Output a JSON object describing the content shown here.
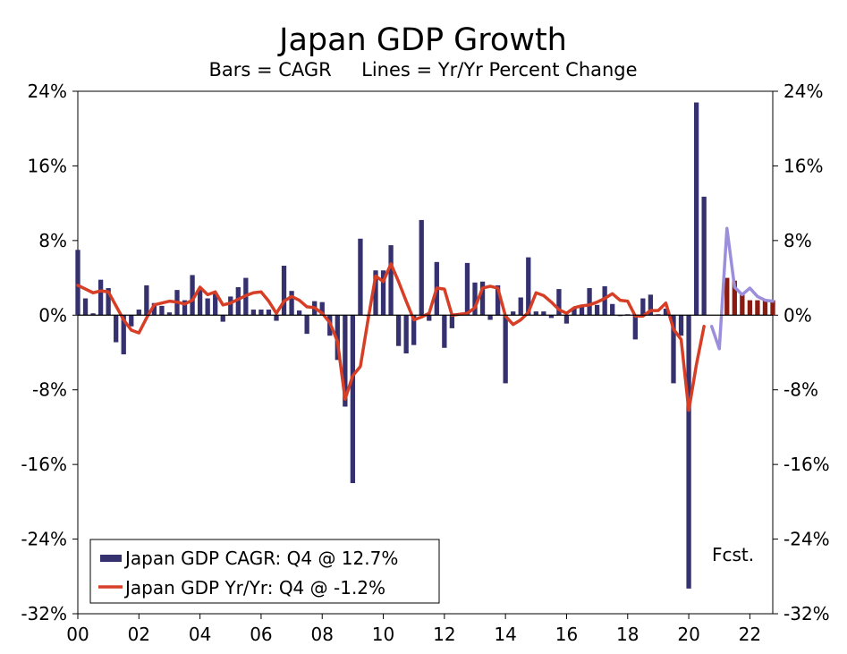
{
  "chart_data": {
    "type": "bar+line",
    "title": "Japan GDP Growth",
    "subtitle": "Bars = CAGR     Lines = Yr/Yr Percent Change",
    "ylim": [
      -32,
      24
    ],
    "yticks": [
      24,
      16,
      8,
      0,
      -8,
      -16,
      -24,
      -32
    ],
    "ytick_labels": [
      "24%",
      "16%",
      "8%",
      "0%",
      "-8%",
      "-16%",
      "-24%",
      "-32%"
    ],
    "xticks": [
      2000,
      2002,
      2004,
      2006,
      2008,
      2010,
      2012,
      2014,
      2016,
      2018,
      2020,
      2022
    ],
    "xtick_labels": [
      "00",
      "02",
      "04",
      "06",
      "08",
      "10",
      "12",
      "14",
      "16",
      "18",
      "20",
      "22"
    ],
    "x_start": 2000.0,
    "x_end": 2022.75,
    "quarter_step": 0.25,
    "annotation": "Fcst.",
    "legend": {
      "position": "bottom-left",
      "items": [
        {
          "label": "Japan GDP CAGR: Q4 @ 12.7%",
          "kind": "bar"
        },
        {
          "label": "Japan GDP Yr/Yr: Q4 @ -1.2%",
          "kind": "line"
        }
      ]
    },
    "colors": {
      "bar": "#35306E",
      "bar_forecast": "#8B1A10",
      "line": "#D63E26",
      "line_forecast": "#9B8FDC"
    },
    "series": [
      {
        "name": "Japan GDP CAGR",
        "kind": "bar",
        "start": 2000.0,
        "values": [
          7.0,
          1.8,
          0.2,
          3.8,
          2.9,
          -2.9,
          -4.2,
          -1.2,
          0.6,
          3.2,
          1.3,
          1.0,
          0.3,
          2.7,
          1.6,
          4.3,
          2.7,
          1.8,
          2.4,
          -0.7,
          2.0,
          3.0,
          4.0,
          0.6,
          0.6,
          0.6,
          -0.6,
          5.3,
          2.6,
          0.5,
          -2.0,
          1.5,
          1.4,
          -2.2,
          -4.8,
          -9.8,
          -18.0,
          8.2,
          -0.1,
          4.8,
          4.8,
          7.5,
          -3.3,
          -4.1,
          -3.2,
          10.2,
          -0.6,
          5.7,
          -3.5,
          -1.4,
          0.1,
          5.6,
          3.5,
          3.6,
          -0.5,
          3.2,
          -7.3,
          0.4,
          1.9,
          6.2,
          0.4,
          0.4,
          -0.3,
          2.8,
          -0.9,
          0.7,
          1.1,
          2.9,
          1.1,
          3.1,
          1.2,
          -0.1,
          0.1,
          -2.6,
          1.8,
          2.2,
          0.1,
          0.7,
          -7.3,
          -2.2,
          -29.3,
          22.8,
          12.7
        ],
        "forecast_start": 2021.25,
        "forecast_values": [
          4.0,
          3.7,
          2.3,
          1.6,
          1.6,
          1.6,
          1.6
        ]
      },
      {
        "name": "Japan GDP Yr/Yr",
        "kind": "line",
        "start": 2000.0,
        "values": [
          3.2,
          2.8,
          2.4,
          2.6,
          2.5,
          1.0,
          -0.5,
          -1.6,
          -1.9,
          -0.3,
          1.1,
          1.3,
          1.5,
          1.4,
          1.2,
          1.6,
          3.0,
          2.2,
          2.5,
          1.1,
          1.3,
          1.7,
          2.1,
          2.4,
          2.5,
          1.5,
          0.2,
          1.5,
          2.0,
          1.6,
          0.9,
          0.8,
          0.2,
          -0.8,
          -2.8,
          -9.0,
          -6.5,
          -5.5,
          -0.5,
          4.2,
          3.6,
          5.5,
          3.6,
          1.5,
          -0.5,
          -0.2,
          0.2,
          2.9,
          2.8,
          0.0,
          0.1,
          0.2,
          0.8,
          2.9,
          3.1,
          2.9,
          -0.1,
          -1.0,
          -0.5,
          0.3,
          2.4,
          2.1,
          1.4,
          0.6,
          0.2,
          0.8,
          1.0,
          1.1,
          1.4,
          1.8,
          2.3,
          1.6,
          1.5,
          -0.1,
          -0.1,
          0.5,
          0.5,
          1.3,
          -1.5,
          -2.6,
          -10.2,
          -5.3,
          -1.2
        ],
        "forecast_start": 2020.75,
        "forecast_values": [
          -1.2,
          -3.6,
          9.3,
          3.0,
          2.2,
          2.9,
          2.0,
          1.6,
          1.5
        ]
      }
    ]
  }
}
